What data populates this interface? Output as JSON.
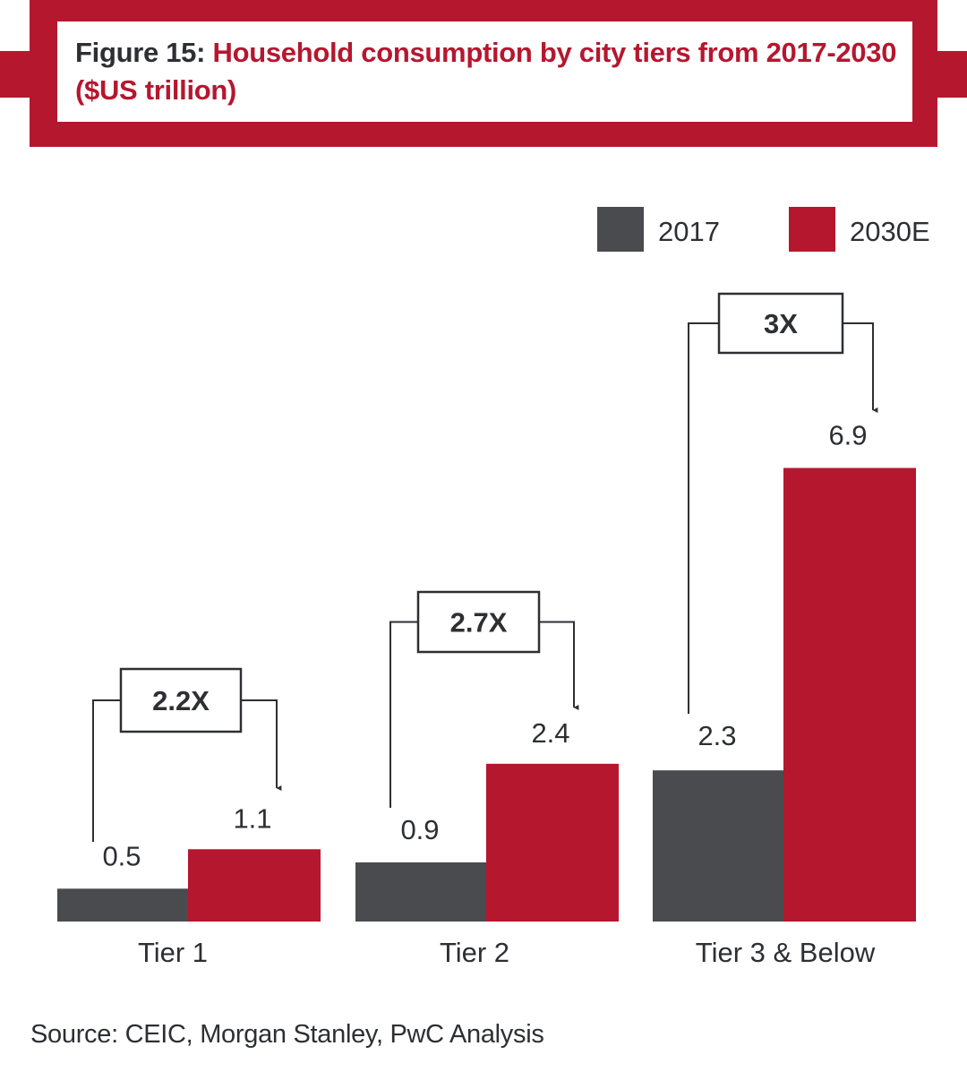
{
  "title": {
    "label": "Figure 15:",
    "text": "Household consumption by city tiers from 2017-2030 ($US trillion)"
  },
  "source": "Source: CEIC, Morgan Stanley, PwC Analysis",
  "colors": {
    "series_2017": "#4a4b4f",
    "series_2030E": "#b5172f",
    "frame": "#b5172f",
    "text": "#2d2f33"
  },
  "chart_data": {
    "type": "bar",
    "title": "Household consumption by city tiers from 2017-2030 ($US trillion)",
    "categories": [
      "Tier 1",
      "Tier 2",
      "Tier 3 & Below"
    ],
    "series": [
      {
        "name": "2017",
        "values": [
          0.5,
          0.9,
          2.3
        ],
        "labels": [
          "0.5",
          "0.9",
          "2.3"
        ]
      },
      {
        "name": "2030E",
        "values": [
          1.1,
          2.4,
          6.9
        ],
        "labels": [
          "1.1",
          "2.4",
          "6.9"
        ]
      }
    ],
    "multipliers": [
      "2.2X",
      "2.7X",
      "3X"
    ],
    "legend_position": "top-right",
    "grid": false,
    "ylim": [
      0,
      7.5
    ]
  }
}
